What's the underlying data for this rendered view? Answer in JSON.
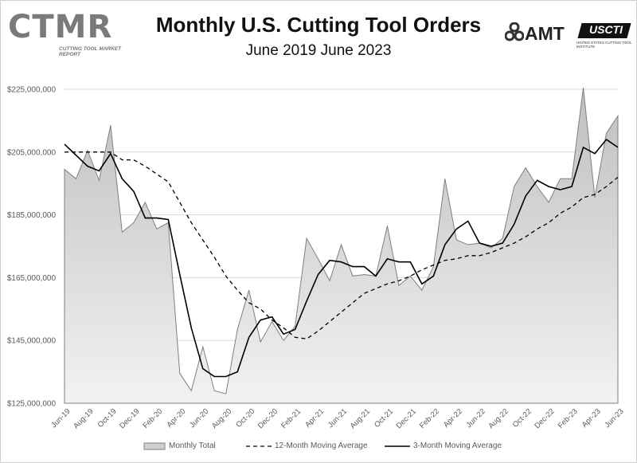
{
  "header": {
    "logo_text": "CTMR",
    "logo_subtext": "CUTTING TOOL MARKET REPORT",
    "amt_text": "AMT",
    "ussc_text": "USCTI",
    "ussc_tagline": "UNITED STATES CUTTING TOOL INSTITUTE"
  },
  "colors": {
    "area_fill_top": "#bfbfbf",
    "area_fill_bottom": "#f2f2f2",
    "area_stroke": "#7f7f7f",
    "line": "#000000",
    "grid": "#d9d9d9"
  },
  "chart_data": {
    "type": "area",
    "title": "Monthly U.S. Cutting Tool Orders",
    "subtitle": "June 2019 June 2023",
    "xlabel": "",
    "ylabel": "",
    "ylim": [
      125000000,
      225000000
    ],
    "yticks": [
      125000000,
      145000000,
      165000000,
      185000000,
      205000000,
      225000000
    ],
    "ytick_labels": [
      "$125,000,000",
      "$145,000,000",
      "$165,000,000",
      "$185,000,000",
      "$205,000,000",
      "$225,000,000"
    ],
    "grid": true,
    "legend_position": "bottom",
    "xtick_labels": [
      "Jun-19",
      "Aug-19",
      "Oct-19",
      "Dec-19",
      "Feb-20",
      "Apr-20",
      "Jun-20",
      "Aug-20",
      "Oct-20",
      "Dec-20",
      "Feb-21",
      "Apr-21",
      "Jun-21",
      "Aug-21",
      "Oct-21",
      "Dec-21",
      "Feb-22",
      "Apr-22",
      "Jun-22",
      "Aug-22",
      "Oct-22",
      "Dec-22",
      "Feb-23",
      "Apr-23",
      "Jun-23"
    ],
    "categories": [
      "Jun-19",
      "Jul-19",
      "Aug-19",
      "Sep-19",
      "Oct-19",
      "Nov-19",
      "Dec-19",
      "Jan-20",
      "Feb-20",
      "Mar-20",
      "Apr-20",
      "May-20",
      "Jun-20",
      "Jul-20",
      "Aug-20",
      "Sep-20",
      "Oct-20",
      "Nov-20",
      "Dec-20",
      "Jan-21",
      "Feb-21",
      "Mar-21",
      "Apr-21",
      "May-21",
      "Jun-21",
      "Jul-21",
      "Aug-21",
      "Sep-21",
      "Oct-21",
      "Nov-21",
      "Dec-21",
      "Jan-22",
      "Feb-22",
      "Mar-22",
      "Apr-22",
      "May-22",
      "Jun-22",
      "Jul-22",
      "Aug-22",
      "Sep-22",
      "Oct-22",
      "Nov-22",
      "Dec-22",
      "Jan-23",
      "Feb-23",
      "Mar-23",
      "Apr-23",
      "May-23",
      "Jun-23"
    ],
    "series": [
      {
        "name": "Monthly Total",
        "style": "area",
        "values": [
          199500000,
          196500000,
          205500000,
          196000000,
          213500000,
          179500000,
          182500000,
          189000000,
          180500000,
          182500000,
          134500000,
          129000000,
          143000000,
          129000000,
          128000000,
          148500000,
          161000000,
          144500000,
          151000000,
          145000000,
          149500000,
          177500000,
          171000000,
          164000000,
          175500000,
          165500000,
          166000000,
          165500000,
          181500000,
          162500000,
          165500000,
          161000000,
          168500000,
          196500000,
          177000000,
          175500000,
          176000000,
          174500000,
          177500000,
          194000000,
          200000000,
          194000000,
          189000000,
          196500000,
          196500000,
          225500000,
          190500000,
          211000000,
          216500000
        ]
      },
      {
        "name": "12-Month Moving Average",
        "style": "dashed",
        "values": [
          205000000,
          205000000,
          205000000,
          205000000,
          205000000,
          202500000,
          202500000,
          200500000,
          198000000,
          195500000,
          189000000,
          182500000,
          177000000,
          171500000,
          165500000,
          161000000,
          157000000,
          155000000,
          151500000,
          149000000,
          146000000,
          145500000,
          148000000,
          151000000,
          154000000,
          157000000,
          160000000,
          161500000,
          163000000,
          164000000,
          165500000,
          167500000,
          169000000,
          170500000,
          171000000,
          172000000,
          172000000,
          173000000,
          174500000,
          176000000,
          178000000,
          180500000,
          182500000,
          185500000,
          187500000,
          190500000,
          191500000,
          194000000,
          197000000
        ]
      },
      {
        "name": "3-Month Moving Average",
        "style": "solid",
        "values": [
          207500000,
          204000000,
          200500000,
          199000000,
          204500000,
          196500000,
          192500000,
          184000000,
          184000000,
          183500000,
          166000000,
          149000000,
          136000000,
          133500000,
          133500000,
          135000000,
          146000000,
          151500000,
          152500000,
          147000000,
          148500000,
          157500000,
          166000000,
          170500000,
          170000000,
          168500000,
          168500000,
          165500000,
          171000000,
          170000000,
          170000000,
          163000000,
          165500000,
          175500000,
          180500000,
          183000000,
          176000000,
          175000000,
          176000000,
          182000000,
          191000000,
          196000000,
          194000000,
          193000000,
          194000000,
          206500000,
          204500000,
          209000000,
          206500000
        ]
      }
    ],
    "legend": [
      "Monthly Total",
      "12-Month Moving Average",
      "3-Month Moving Average"
    ]
  }
}
